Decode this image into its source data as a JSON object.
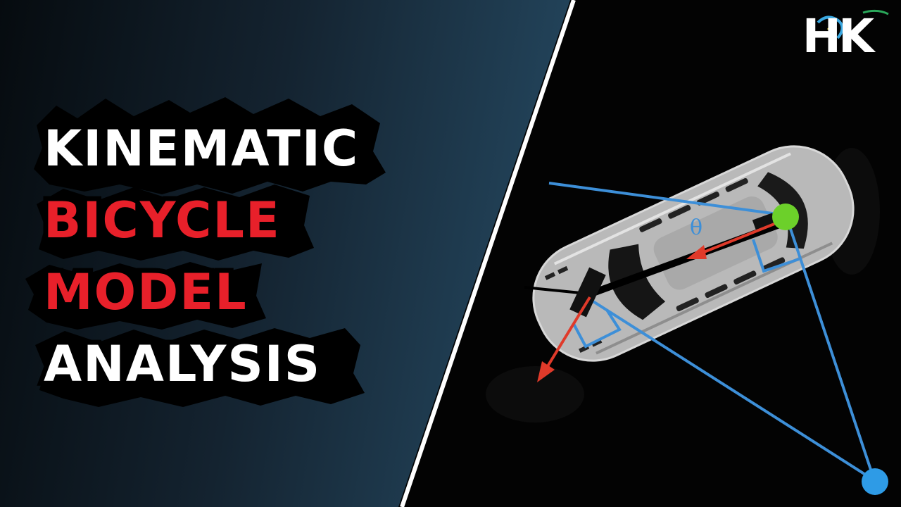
{
  "title": {
    "line1": "KINEMATIC",
    "line2": "BICYCLE",
    "line3": "MODEL",
    "line4": "ANALYSIS"
  },
  "logo": {
    "text": "HK"
  },
  "diagram": {
    "angle_label": "θ"
  },
  "colors": {
    "background_dark": "#030303",
    "gradient_light": "#3b7192",
    "title_white": "#ffffff",
    "title_red": "#e8202a",
    "car_body": "#b9b9b9",
    "line_blue": "#3d8fd8",
    "arrow_red": "#e03a2a",
    "rear_point_green": "#6cd02a",
    "center_point_blue": "#2e9be6"
  }
}
